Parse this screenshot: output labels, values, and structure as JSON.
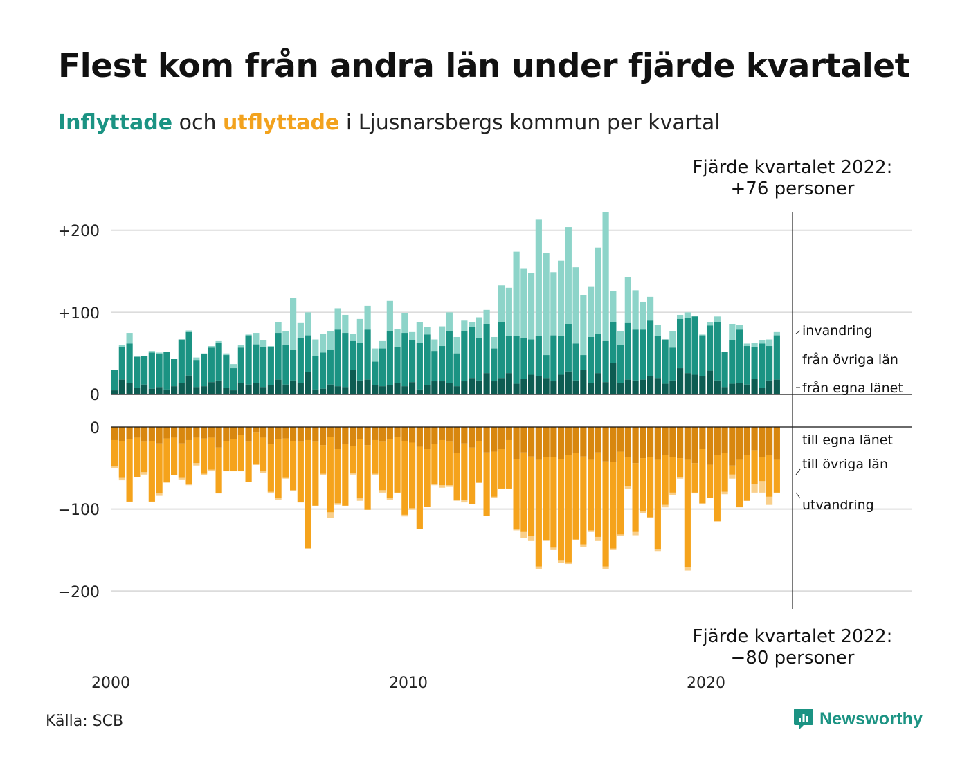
{
  "title": "Flest kom från andra län under fjärde kvartalet",
  "subtitle": {
    "in_word": "Inflyttade",
    "and_word": "och",
    "out_word": "utflyttade",
    "rest": "i Ljusnarsbergs kommun per kvartal"
  },
  "source": "Källa: SCB",
  "brand": "Newsworthy",
  "colors": {
    "in_own": "#0d5c52",
    "in_other": "#1b9383",
    "in_immig": "#8dd4c9",
    "out_own": "#d8870f",
    "out_other": "#f5a31c",
    "out_emig": "#f9cf8a",
    "grid": "#dcdcdc",
    "brand": "#1b9383"
  },
  "chart_data": {
    "type": "bar",
    "stacked": true,
    "x_start": "2000 Q1",
    "x_ticks": [
      "2000",
      "2010",
      "2020"
    ],
    "y_ticks": {
      "top": [
        "+200",
        "+100",
        "0"
      ],
      "bottom": [
        "0",
        "−100",
        "−200"
      ]
    },
    "y_range_top": [
      0,
      222
    ],
    "y_range_bottom": [
      -222,
      0
    ],
    "inflow_labels": [
      "invandring",
      "från övriga län",
      "från egna länet"
    ],
    "outflow_labels": [
      "till egna länet",
      "till övriga län",
      "utvandring"
    ],
    "annotation_top": {
      "line1": "Fjärde kvartalet 2022:",
      "line2": "+76 personer"
    },
    "annotation_bottom": {
      "line1": "Fjärde kvartalet 2022:",
      "line2": "−80 personer"
    },
    "inflow_totals": [
      30,
      60,
      75,
      46,
      47,
      53,
      51,
      52,
      43,
      67,
      78,
      45,
      50,
      59,
      65,
      50,
      37,
      60,
      73,
      75,
      66,
      59,
      88,
      77,
      118,
      87,
      100,
      67,
      74,
      77,
      105,
      97,
      74,
      92,
      108,
      56,
      65,
      114,
      80,
      99,
      76,
      88,
      82,
      67,
      83,
      100,
      70,
      90,
      88,
      94,
      103,
      70,
      133,
      130,
      174,
      153,
      148,
      213,
      172,
      149,
      163,
      204,
      155,
      121,
      131,
      179,
      222,
      126,
      77,
      143,
      127,
      113,
      119,
      85,
      67,
      77,
      97,
      100,
      96,
      73,
      88,
      95,
      52,
      86,
      85,
      62,
      63,
      66,
      67,
      76
    ],
    "inflow_own": [
      5,
      18,
      14,
      8,
      12,
      7,
      9,
      6,
      10,
      14,
      23,
      9,
      10,
      15,
      17,
      8,
      5,
      14,
      12,
      14,
      9,
      11,
      18,
      12,
      17,
      14,
      27,
      6,
      7,
      12,
      10,
      9,
      30,
      17,
      18,
      11,
      10,
      11,
      14,
      10,
      15,
      6,
      11,
      16,
      16,
      14,
      10,
      16,
      20,
      17,
      26,
      16,
      20,
      26,
      13,
      19,
      24,
      22,
      20,
      16,
      24,
      28,
      17,
      30,
      14,
      26,
      15,
      38,
      14,
      18,
      17,
      18,
      22,
      20,
      13,
      17,
      32,
      26,
      24,
      22,
      29,
      17,
      9,
      13,
      14,
      12,
      19,
      8,
      17,
      18
    ],
    "inflow_other": [
      30,
      58,
      62,
      46,
      47,
      51,
      49,
      52,
      43,
      67,
      76,
      42,
      49,
      57,
      63,
      48,
      32,
      57,
      72,
      61,
      58,
      58,
      75,
      60,
      54,
      69,
      72,
      47,
      51,
      54,
      79,
      75,
      65,
      63,
      79,
      40,
      56,
      77,
      58,
      75,
      66,
      63,
      73,
      53,
      59,
      77,
      50,
      77,
      82,
      69,
      86,
      56,
      88,
      71,
      71,
      69,
      67,
      71,
      48,
      72,
      71,
      86,
      62,
      48,
      70,
      74,
      65,
      88,
      60,
      87,
      79,
      79,
      90,
      71,
      67,
      57,
      92,
      93,
      95,
      72,
      84,
      88,
      52,
      66,
      79,
      59,
      58,
      62,
      59,
      72
    ],
    "outflow_totals": [
      -50,
      -65,
      -91,
      -61,
      -58,
      -91,
      -84,
      -68,
      -59,
      -64,
      -71,
      -47,
      -59,
      -54,
      -81,
      -54,
      -54,
      -54,
      -67,
      -46,
      -56,
      -81,
      -89,
      -63,
      -78,
      -92,
      -148,
      -96,
      -59,
      -111,
      -95,
      -96,
      -58,
      -90,
      -101,
      -59,
      -80,
      -89,
      -80,
      -109,
      -101,
      -124,
      -97,
      -71,
      -74,
      -73,
      -90,
      -92,
      -94,
      -68,
      -108,
      -86,
      -75,
      -75,
      -126,
      -135,
      -139,
      -173,
      -139,
      -150,
      -166,
      -167,
      -138,
      -146,
      -128,
      -139,
      -173,
      -150,
      -133,
      -75,
      -132,
      -105,
      -111,
      -152,
      -98,
      -83,
      -63,
      -175,
      -81,
      -94,
      -86,
      -115,
      -82,
      -63,
      -98,
      -90,
      -80,
      -80,
      -95,
      -80
    ],
    "outflow_own": [
      -16,
      -17,
      -15,
      -13,
      -18,
      -17,
      -20,
      -14,
      -13,
      -20,
      -16,
      -13,
      -14,
      -13,
      -25,
      -17,
      -15,
      -10,
      -18,
      -7,
      -13,
      -21,
      -15,
      -14,
      -17,
      -18,
      -16,
      -18,
      -22,
      -12,
      -27,
      -21,
      -23,
      -15,
      -22,
      -16,
      -18,
      -15,
      -12,
      -17,
      -19,
      -24,
      -27,
      -21,
      -16,
      -18,
      -32,
      -20,
      -25,
      -17,
      -31,
      -30,
      -27,
      -16,
      -39,
      -31,
      -36,
      -40,
      -37,
      -37,
      -39,
      -34,
      -32,
      -36,
      -40,
      -31,
      -42,
      -43,
      -30,
      -37,
      -44,
      -38,
      -37,
      -40,
      -34,
      -37,
      -38,
      -40,
      -44,
      -27,
      -46,
      -34,
      -32,
      -47,
      -40,
      -34,
      -29,
      -37,
      -34,
      -40
    ],
    "outflow_other": [
      -48,
      -62,
      -91,
      -61,
      -55,
      -91,
      -81,
      -67,
      -59,
      -62,
      -70,
      -44,
      -57,
      -52,
      -81,
      -54,
      -54,
      -54,
      -67,
      -46,
      -54,
      -79,
      -86,
      -62,
      -77,
      -92,
      -148,
      -96,
      -57,
      -104,
      -93,
      -96,
      -56,
      -87,
      -101,
      -57,
      -77,
      -86,
      -80,
      -107,
      -99,
      -124,
      -97,
      -70,
      -71,
      -71,
      -89,
      -89,
      -94,
      -68,
      -108,
      -85,
      -75,
      -75,
      -125,
      -128,
      -133,
      -170,
      -138,
      -147,
      -163,
      -165,
      -137,
      -143,
      -126,
      -134,
      -170,
      -148,
      -131,
      -72,
      -128,
      -103,
      -110,
      -149,
      -95,
      -80,
      -61,
      -171,
      -80,
      -93,
      -86,
      -115,
      -79,
      -58,
      -97,
      -90,
      -70,
      -66,
      -85,
      -80
    ]
  }
}
